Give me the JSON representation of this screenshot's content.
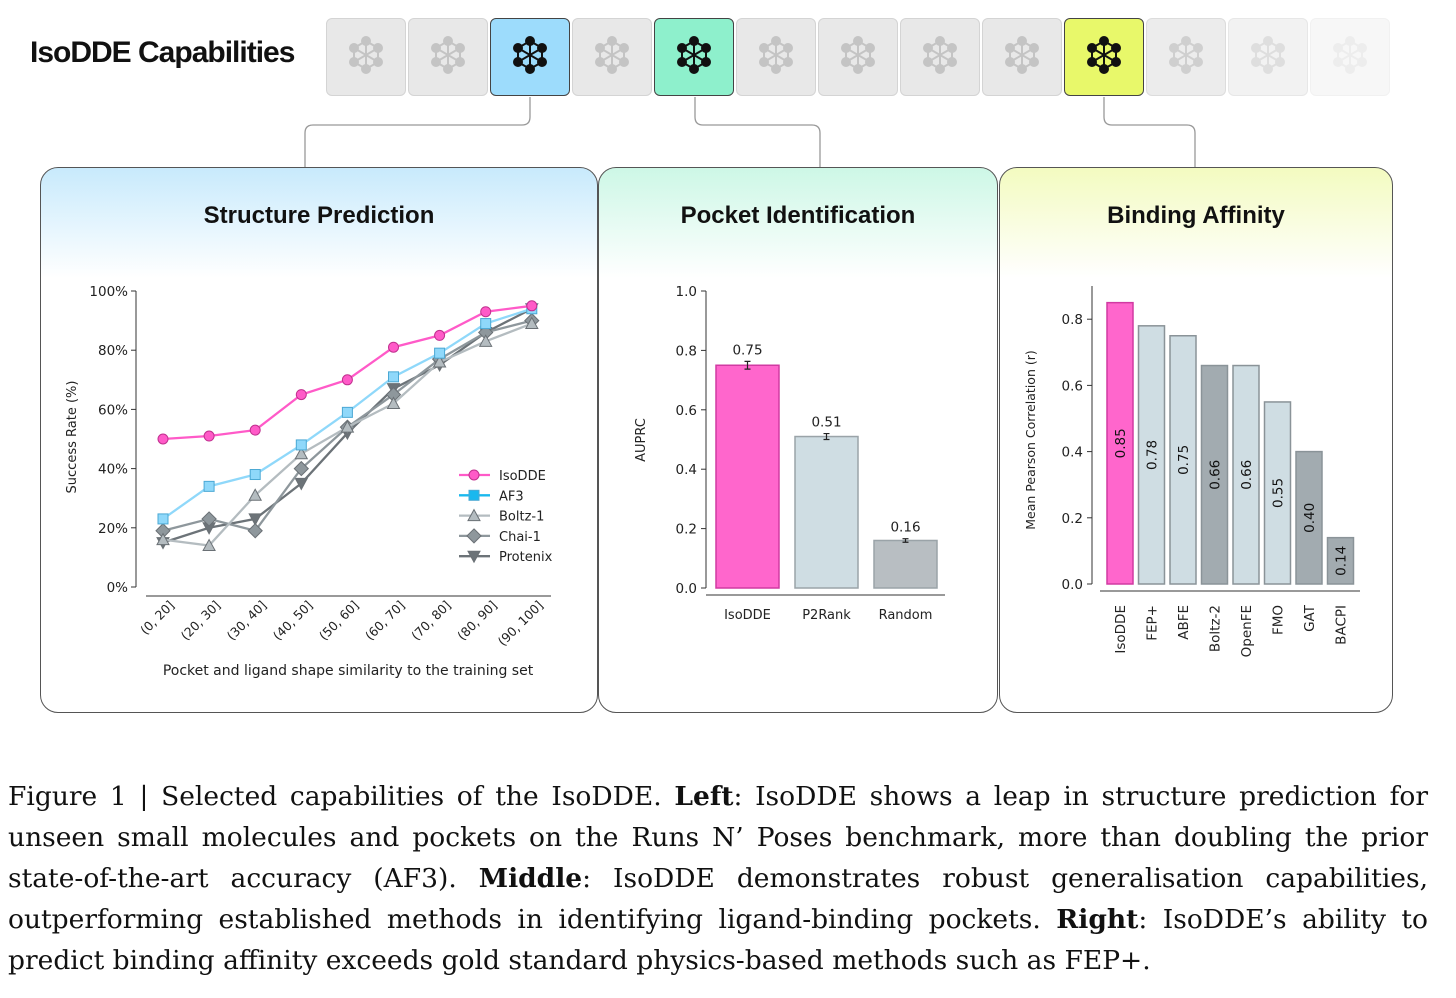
{
  "header": {
    "title": "IsoDDE Capabilities",
    "tiles": 13,
    "active_tiles": [
      {
        "index": 2,
        "color": "#9ddcfc"
      },
      {
        "index": 4,
        "color": "#8ef0cc"
      },
      {
        "index": 9,
        "color": "#e8f86a"
      }
    ]
  },
  "panels": [
    {
      "title": "Structure Prediction",
      "color": "#c8eafc"
    },
    {
      "title": "Pocket Identification",
      "color": "#cdf7e6"
    },
    {
      "title": "Binding Affinity",
      "color": "#f3fbc0"
    }
  ],
  "chart_data": [
    {
      "type": "line",
      "title": "Structure Prediction",
      "xlabel": "Pocket and ligand shape similarity to the training set",
      "ylabel": "Success Rate (%)",
      "ylim": [
        0,
        100
      ],
      "yticks": [
        "0%",
        "20%",
        "40%",
        "60%",
        "80%",
        "100%"
      ],
      "categories": [
        "(0, 20]",
        "(20, 30]",
        "(30, 40]",
        "(40, 50]",
        "(50, 60]",
        "(60, 70]",
        "(70, 80]",
        "(80, 90]",
        "(90, 100]"
      ],
      "legend": "center-right",
      "series": [
        {
          "name": "IsoDDE",
          "marker": "circle",
          "color": "#ff5ac8",
          "values": [
            50,
            51,
            53,
            65,
            70,
            81,
            85,
            93,
            95
          ]
        },
        {
          "name": "AF3",
          "marker": "square",
          "color": "#8fd8fa",
          "values": [
            23,
            34,
            38,
            48,
            59,
            71,
            79,
            89,
            94
          ]
        },
        {
          "name": "Boltz-1",
          "marker": "triangle-up",
          "color": "#b4bcc0",
          "values": [
            16,
            14,
            31,
            45,
            54,
            62,
            76,
            83,
            89
          ]
        },
        {
          "name": "Chai-1",
          "marker": "diamond",
          "color": "#8e979c",
          "values": [
            19,
            23,
            19,
            40,
            54,
            65,
            77,
            86,
            90
          ]
        },
        {
          "name": "Protenix",
          "marker": "triangle-down",
          "color": "#6c7378",
          "values": [
            15,
            20,
            23,
            35,
            52,
            67,
            75,
            86,
            94
          ]
        }
      ]
    },
    {
      "type": "bar",
      "title": "Pocket Identification",
      "ylabel": "AUPRC",
      "ylim": [
        0,
        1
      ],
      "yticks": [
        "0.0",
        "0.2",
        "0.4",
        "0.6",
        "0.8",
        "1.0"
      ],
      "categories": [
        "IsoDDE",
        "P2Rank",
        "Random"
      ],
      "values": [
        0.75,
        0.51,
        0.16
      ],
      "labels": [
        "0.75",
        "0.51",
        "0.16"
      ],
      "errors": [
        0.013,
        0.01,
        0.006
      ],
      "colors": [
        "#ff66cc",
        "#cfdde3",
        "#b8bec2"
      ]
    },
    {
      "type": "bar",
      "title": "Binding Affinity",
      "ylabel": "Mean Pearson Correlation (r)",
      "ylim": [
        0,
        0.9
      ],
      "yticks": [
        "0.0",
        "0.2",
        "0.4",
        "0.6",
        "0.8"
      ],
      "categories": [
        "IsoDDE",
        "FEP+",
        "ABFE",
        "Boltz-2",
        "OpenFE",
        "FMO",
        "GAT",
        "BACPI"
      ],
      "values": [
        0.85,
        0.78,
        0.75,
        0.66,
        0.66,
        0.55,
        0.4,
        0.14
      ],
      "labels": [
        "0.85",
        "0.78",
        "0.75",
        "0.66",
        "0.66",
        "0.55",
        "0.40",
        "0.14"
      ],
      "colors": [
        "#ff66cc",
        "#cfdde3",
        "#cfdde3",
        "#a2abb0",
        "#cfdde3",
        "#cfdde3",
        "#a2abb0",
        "#a2abb0"
      ]
    }
  ],
  "caption": {
    "p1": "Figure 1 | Selected capabilities of the IsoDDE. ",
    "b1": "Left",
    "p2": ": IsoDDE shows a leap in structure prediction for unseen small molecules and pockets on the Runs N’ Poses benchmark, more than doubling the prior state-of-the-art accuracy (AF3). ",
    "b2": "Middle",
    "p3": ": IsoDDE demonstrates robust generalisation capabilities, outperforming established methods in identifying ligand-binding pockets. ",
    "b3": "Right",
    "p4": ": IsoDDE’s ability to predict binding affinity exceeds gold standard physics-based methods such as FEP+."
  }
}
